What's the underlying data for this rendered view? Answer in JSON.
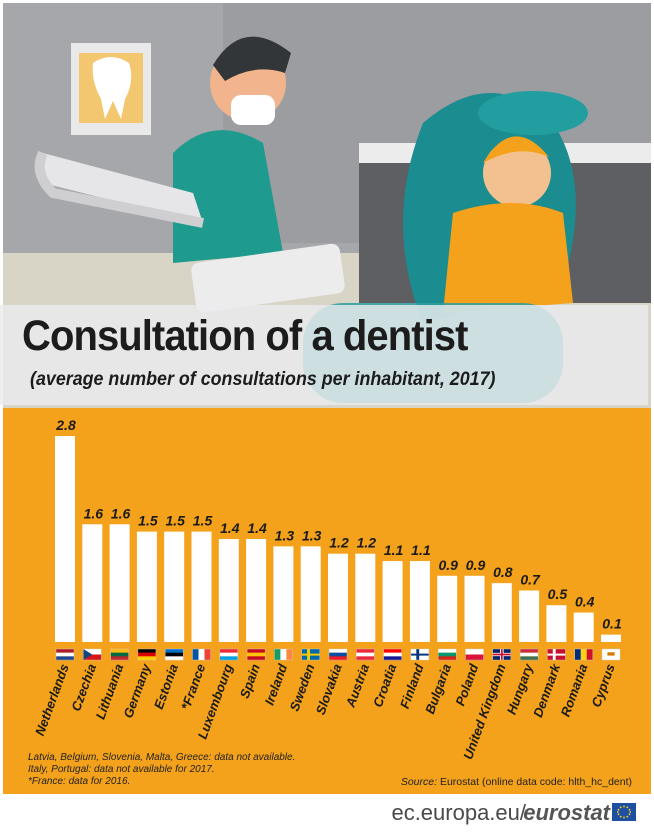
{
  "header": {
    "title": "Consultation of a dentist",
    "subtitle": "(average number of consultations per inhabitant, 2017)"
  },
  "chart_data": {
    "type": "bar",
    "title": "Consultation of a dentist",
    "subtitle": "(average number of consultations per inhabitant, 2017)",
    "categories": [
      "Netherlands",
      "Czechia",
      "Lithuania",
      "Germany",
      "Estonia",
      "*France",
      "Luxembourg",
      "Spain",
      "Ireland",
      "Sweden",
      "Slovakia",
      "Austria",
      "Croatia",
      "Finland",
      "Bulgaria",
      "Poland",
      "United Kingdom",
      "Hungary",
      "Denmark",
      "Romania",
      "Cyprus"
    ],
    "values": [
      2.8,
      1.6,
      1.6,
      1.5,
      1.5,
      1.5,
      1.4,
      1.4,
      1.3,
      1.3,
      1.2,
      1.2,
      1.1,
      1.1,
      0.9,
      0.9,
      0.8,
      0.7,
      0.5,
      0.4,
      0.1
    ],
    "value_labels": [
      "2.8",
      "1.6",
      "1.6",
      "1.5",
      "1.5",
      "1.5",
      "1.4",
      "1.4",
      "1.3",
      "1.3",
      "1.2",
      "1.2",
      "1.1",
      "1.1",
      "0.9",
      "0.9",
      "0.8",
      "0.7",
      "0.5",
      "0.4",
      "0.1"
    ],
    "ylim": [
      0,
      2.8
    ],
    "grid": false,
    "legend": "none",
    "bar_color": "#ffffff",
    "background_color": "#f4a21b"
  },
  "flags": [
    {
      "country": "Netherlands",
      "colors": [
        "#ae1c28",
        "#ffffff",
        "#21468b"
      ],
      "dir": "h"
    },
    {
      "country": "Czechia",
      "colors": [
        "#ffffff",
        "#d7141a"
      ],
      "dir": "czech"
    },
    {
      "country": "Lithuania",
      "colors": [
        "#fdb913",
        "#006a44",
        "#c1272d"
      ],
      "dir": "h"
    },
    {
      "country": "Germany",
      "colors": [
        "#000000",
        "#dd0000",
        "#ffce00"
      ],
      "dir": "h"
    },
    {
      "country": "Estonia",
      "colors": [
        "#0072ce",
        "#000000",
        "#ffffff"
      ],
      "dir": "h"
    },
    {
      "country": "France",
      "colors": [
        "#0055a4",
        "#ffffff",
        "#ef4135"
      ],
      "dir": "v"
    },
    {
      "country": "Luxembourg",
      "colors": [
        "#ed2939",
        "#ffffff",
        "#00a1de"
      ],
      "dir": "h"
    },
    {
      "country": "Spain",
      "colors": [
        "#c60b1e",
        "#ffc400",
        "#c60b1e"
      ],
      "dir": "h"
    },
    {
      "country": "Ireland",
      "colors": [
        "#169b62",
        "#ffffff",
        "#ff883e"
      ],
      "dir": "v"
    },
    {
      "country": "Sweden",
      "colors": [
        "#006aa7",
        "#fecc00"
      ],
      "dir": "cross"
    },
    {
      "country": "Slovakia",
      "colors": [
        "#ffffff",
        "#0b4ea2",
        "#ee1c25"
      ],
      "dir": "h"
    },
    {
      "country": "Austria",
      "colors": [
        "#ed2939",
        "#ffffff",
        "#ed2939"
      ],
      "dir": "h"
    },
    {
      "country": "Croatia",
      "colors": [
        "#ff0000",
        "#ffffff",
        "#171796"
      ],
      "dir": "h"
    },
    {
      "country": "Finland",
      "colors": [
        "#ffffff",
        "#003580"
      ],
      "dir": "cross"
    },
    {
      "country": "Bulgaria",
      "colors": [
        "#ffffff",
        "#00966e",
        "#d62612"
      ],
      "dir": "h"
    },
    {
      "country": "Poland",
      "colors": [
        "#ffffff",
        "#dc143c"
      ],
      "dir": "h"
    },
    {
      "country": "United Kingdom",
      "colors": [
        "#012169",
        "#ffffff",
        "#c8102e"
      ],
      "dir": "uk"
    },
    {
      "country": "Hungary",
      "colors": [
        "#cd2a3e",
        "#ffffff",
        "#436f4d"
      ],
      "dir": "h"
    },
    {
      "country": "Denmark",
      "colors": [
        "#c8102e",
        "#ffffff"
      ],
      "dir": "cross"
    },
    {
      "country": "Romania",
      "colors": [
        "#002b7f",
        "#fcd116",
        "#ce1126"
      ],
      "dir": "v"
    },
    {
      "country": "Cyprus",
      "colors": [
        "#ffffff",
        "#d57800"
      ],
      "dir": "cyprus"
    }
  ],
  "notes": [
    "Latvia, Belgium, Slovenia, Malta, Greece: data not available.",
    "Italy, Portugal: data not available for 2017.",
    "*France: data for 2016."
  ],
  "source": {
    "label": "Source:",
    "text": "Eurostat (online data code: hlth_hc_dent)"
  },
  "footer": {
    "domain": "ec.europa.eu/",
    "brand": "eurostat"
  },
  "colors": {
    "chart_background": "#f4a21b",
    "bar": "#ffffff",
    "illustration_bg": "#a9aaad"
  }
}
